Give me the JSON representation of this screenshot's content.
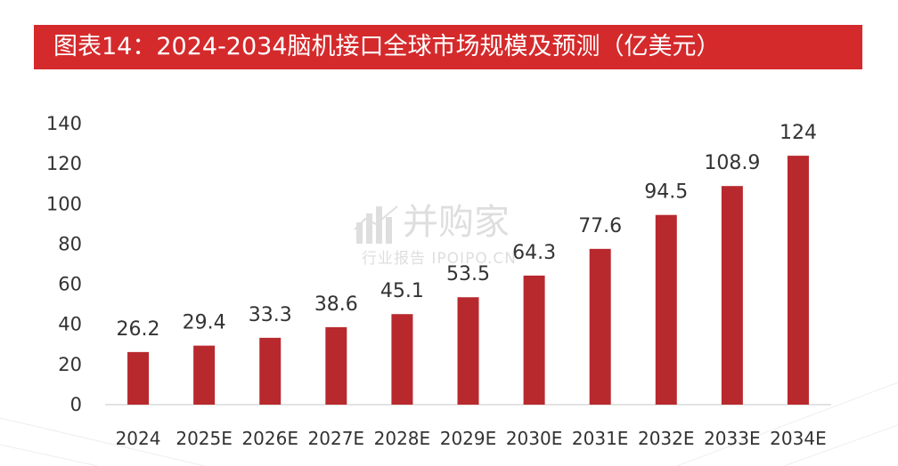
{
  "chart_data": {
    "type": "bar",
    "title": "图表14：2024-2034脑机接口全球市场规模及预测（亿美元）",
    "xlabel": "",
    "ylabel": "",
    "categories": [
      "2024",
      "2025E",
      "2026E",
      "2027E",
      "2028E",
      "2029E",
      "2030E",
      "2031E",
      "2032E",
      "2033E",
      "2034E"
    ],
    "values": [
      26.2,
      29.4,
      33.3,
      38.6,
      45.1,
      53.5,
      64.3,
      77.6,
      94.5,
      108.9,
      124
    ],
    "ylim": [
      0,
      140
    ],
    "yticks": [
      0,
      20,
      40,
      60,
      80,
      100,
      120,
      140
    ],
    "grid": false,
    "legend": "none",
    "data_labels": true
  },
  "colors": {
    "banner": "#d42a2c",
    "bar": "#b8292e",
    "text": "#333333",
    "axis": "#d9d9d9",
    "decoration": "#eeeeee"
  },
  "watermark": {
    "brand": "并购家",
    "tagline": "行业报告 IPOIPO.CN",
    "icon": "bar-chart-logo-icon"
  }
}
